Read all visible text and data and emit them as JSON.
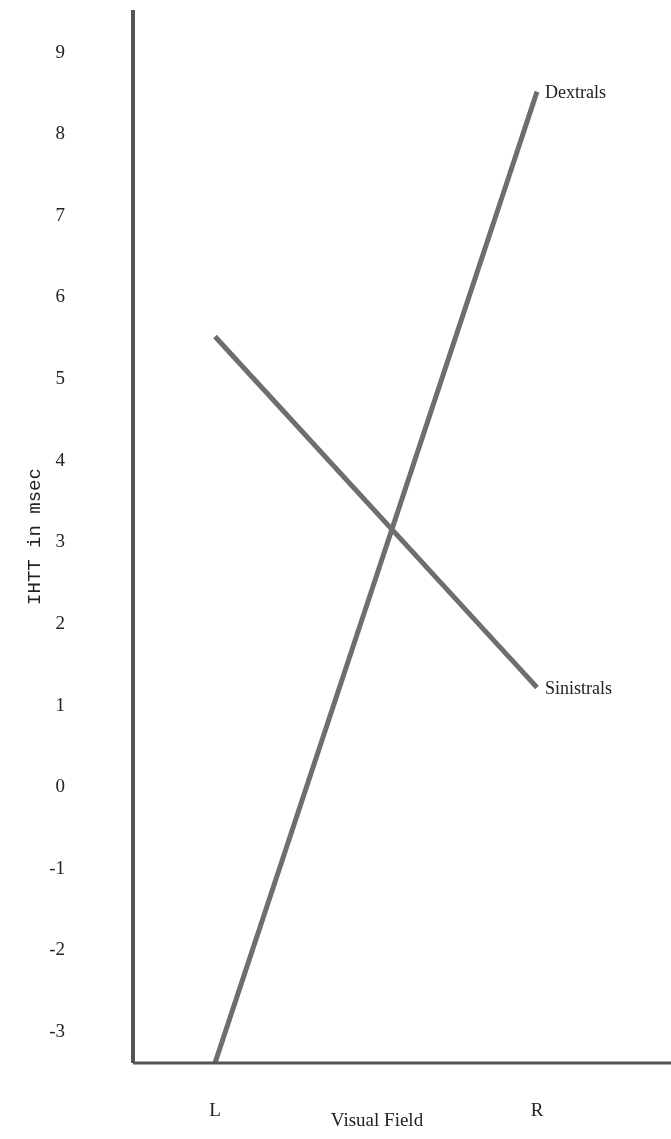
{
  "chart_data": {
    "type": "line",
    "xlabel": "Visual Field",
    "ylabel": "IHTT in msec",
    "categories": [
      "L",
      "R"
    ],
    "series": [
      {
        "name": "Dextrals",
        "color": "#6e6e6e",
        "values": [
          -3.4,
          8.5
        ]
      },
      {
        "name": "Sinistrals",
        "color": "#6e6e6e",
        "values": [
          5.5,
          1.2
        ]
      }
    ],
    "ylim": [
      -3.4,
      9.5
    ],
    "yticks": [
      -3,
      -2,
      -1,
      0,
      1,
      2,
      3,
      4,
      5,
      6,
      7,
      8,
      9
    ],
    "grid": false,
    "legend": false,
    "marker": "none",
    "line_style": "solid"
  }
}
